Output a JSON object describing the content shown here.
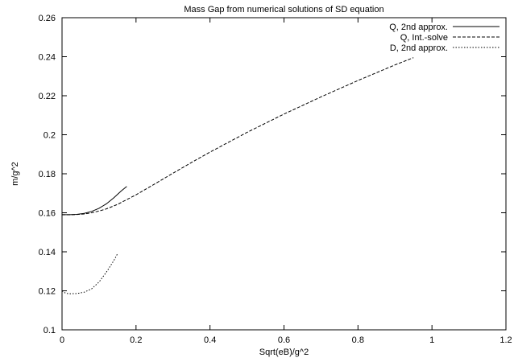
{
  "chart_data": {
    "type": "line",
    "title": "Mass Gap from numerical solutions of SD equation",
    "xlabel": "Sqrt(eB)/g^2",
    "ylabel": "m/g^2",
    "xlim": [
      0,
      1.2
    ],
    "ylim": [
      0.1,
      0.26
    ],
    "xticks": [
      0,
      0.2,
      0.4,
      0.6,
      0.8,
      1,
      1.2
    ],
    "xtick_labels": [
      "0",
      "0.2",
      "0.4",
      "0.6",
      "0.8",
      "1",
      "1.2"
    ],
    "yticks": [
      0.1,
      0.12,
      0.14,
      0.16,
      0.18,
      0.2,
      0.22,
      0.24,
      0.26
    ],
    "ytick_labels": [
      "0.1",
      "0.12",
      "0.14",
      "0.16",
      "0.18",
      "0.2",
      "0.22",
      "0.24",
      "0.26"
    ],
    "grid": false,
    "legend_position": "top-right",
    "series": [
      {
        "name": "Q, 2nd approx.",
        "style": "solid",
        "x": [
          0,
          0.02,
          0.04,
          0.06,
          0.08,
          0.1,
          0.12,
          0.14,
          0.16,
          0.175
        ],
        "y": [
          0.159,
          0.159,
          0.1592,
          0.1597,
          0.1607,
          0.1623,
          0.1646,
          0.1677,
          0.1712,
          0.1735
        ]
      },
      {
        "name": "Q, Int.-solve",
        "style": "dashed",
        "x": [
          0,
          0.02,
          0.04,
          0.06,
          0.08,
          0.1,
          0.12,
          0.15,
          0.2,
          0.25,
          0.3,
          0.35,
          0.4,
          0.5,
          0.6,
          0.7,
          0.8,
          0.9,
          0.95
        ],
        "y": [
          0.159,
          0.159,
          0.1591,
          0.1594,
          0.16,
          0.1609,
          0.162,
          0.1643,
          0.1692,
          0.1747,
          0.1803,
          0.1858,
          0.1911,
          0.2012,
          0.2106,
          0.2194,
          0.2278,
          0.2358,
          0.2395
        ]
      },
      {
        "name": "D, 2nd approx.",
        "style": "dotted",
        "x": [
          0,
          0.01,
          0.02,
          0.04,
          0.06,
          0.08,
          0.1,
          0.12,
          0.14,
          0.15
        ],
        "y": [
          0.12,
          0.1187,
          0.1185,
          0.1186,
          0.1193,
          0.121,
          0.1245,
          0.1296,
          0.1355,
          0.139
        ]
      }
    ]
  }
}
